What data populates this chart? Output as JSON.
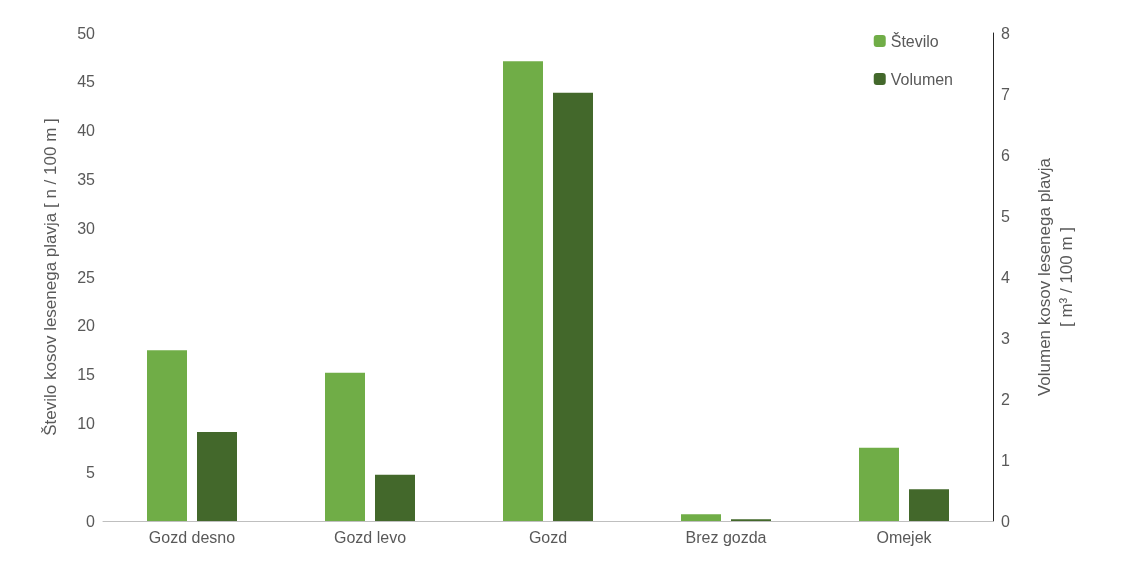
{
  "chart_data": {
    "type": "bar",
    "categories": [
      "Gozd desno",
      "Gozd levo",
      "Gozd",
      "Brez gozda",
      "Omejek"
    ],
    "series": [
      {
        "name": "Število",
        "color": "#70ad47",
        "values": [
          17.5,
          15.2,
          47.1,
          0.7,
          7.5
        ]
      },
      {
        "name": "Volumen",
        "color": "#43682b",
        "axis": "y2",
        "values": [
          1.46,
          0.76,
          7.02,
          0.03,
          0.52
        ]
      }
    ],
    "ylabel": "Število kosov lesenega plavja [ n / 100 m ]",
    "y2label": "Volumen kosov lesenega plavja\n[ m³ / 100 m ]",
    "ylim": [
      0,
      50
    ],
    "yticks": [
      0,
      5,
      10,
      15,
      20,
      25,
      30,
      35,
      40,
      45,
      50
    ],
    "y2lim": [
      0,
      8
    ],
    "y2ticks": [
      0,
      1,
      2,
      3,
      4,
      5,
      6,
      7,
      8
    ],
    "grid": false,
    "legend": "top right"
  }
}
